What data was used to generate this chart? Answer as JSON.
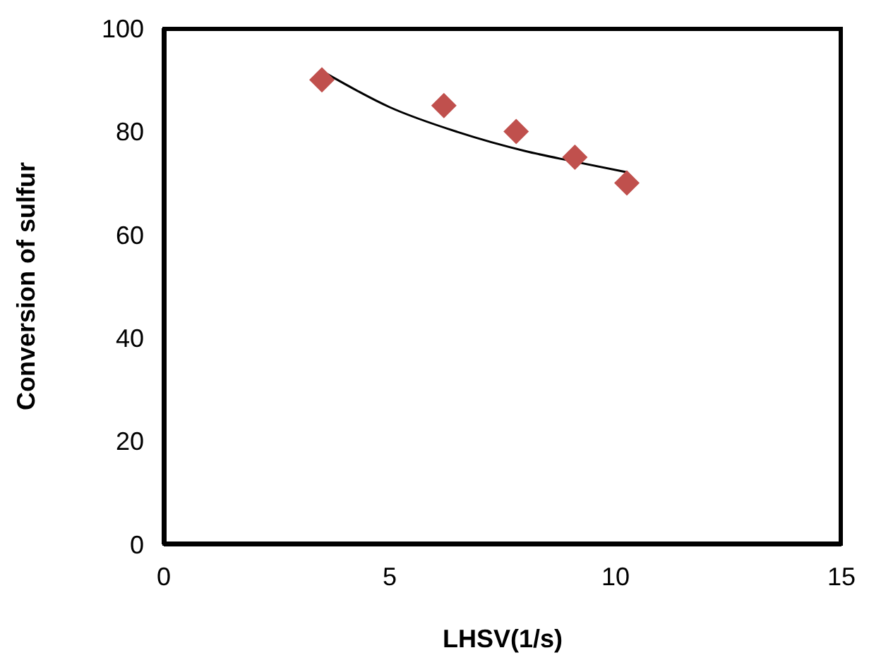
{
  "chart_data": {
    "type": "scatter",
    "xlabel": "LHSV(1/s)",
    "ylabel": "Conversion of sulfur",
    "xlim": [
      0,
      15
    ],
    "xticks": [
      0,
      5,
      10,
      15
    ],
    "ylim": [
      0,
      100
    ],
    "yticks": [
      0,
      20,
      40,
      60,
      80,
      100
    ],
    "grid": false,
    "legend": false,
    "marker": "diamond",
    "series": [
      {
        "color": "#c0504d",
        "x": [
          3.5,
          6.2,
          7.8,
          9.1,
          10.25
        ],
        "values": [
          90,
          85,
          80,
          75,
          70
        ]
      },
      {
        "type": "line",
        "color": "#000000",
        "marker": "none",
        "line_style": "solid",
        "x": [
          3.6,
          5,
          6.5,
          8,
          9,
          10.25
        ],
        "values": [
          91.2,
          84.7,
          79.9,
          76.2,
          74.3,
          72.1
        ]
      }
    ]
  }
}
